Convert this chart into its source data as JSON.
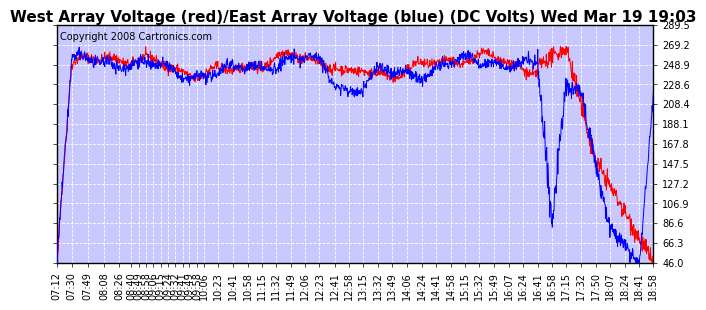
{
  "title": "West Array Voltage (red)/East Array Voltage (blue) (DC Volts) Wed Mar 19 19:03",
  "copyright": "Copyright 2008 Cartronics.com",
  "ylim": [
    46.0,
    289.5
  ],
  "yticks": [
    46.0,
    66.3,
    86.6,
    106.9,
    127.2,
    147.5,
    167.8,
    188.1,
    208.4,
    228.6,
    248.9,
    269.2,
    289.5
  ],
  "bg_color": "#FFFFFF",
  "plot_bg_color": "#C8C8FF",
  "grid_color": "#FFFFFF",
  "title_fontsize": 11,
  "copyright_fontsize": 7,
  "tick_fontsize": 7,
  "red_color": "#FF0000",
  "blue_color": "#0000FF",
  "tick_labels": [
    "07:12",
    "07:30",
    "07:49",
    "08:08",
    "08:26",
    "08:40",
    "08:49",
    "08:58",
    "09:06",
    "09:15",
    "09:24",
    "09:32",
    "09:41",
    "09:49",
    "09:58",
    "10:06",
    "10:23",
    "10:41",
    "10:58",
    "11:15",
    "11:32",
    "11:49",
    "12:06",
    "12:23",
    "12:41",
    "12:58",
    "13:15",
    "13:32",
    "13:49",
    "14:06",
    "14:24",
    "14:41",
    "14:58",
    "15:15",
    "15:32",
    "15:49",
    "16:07",
    "16:24",
    "16:41",
    "16:58",
    "17:15",
    "17:32",
    "17:50",
    "18:07",
    "18:24",
    "18:41",
    "18:58"
  ]
}
